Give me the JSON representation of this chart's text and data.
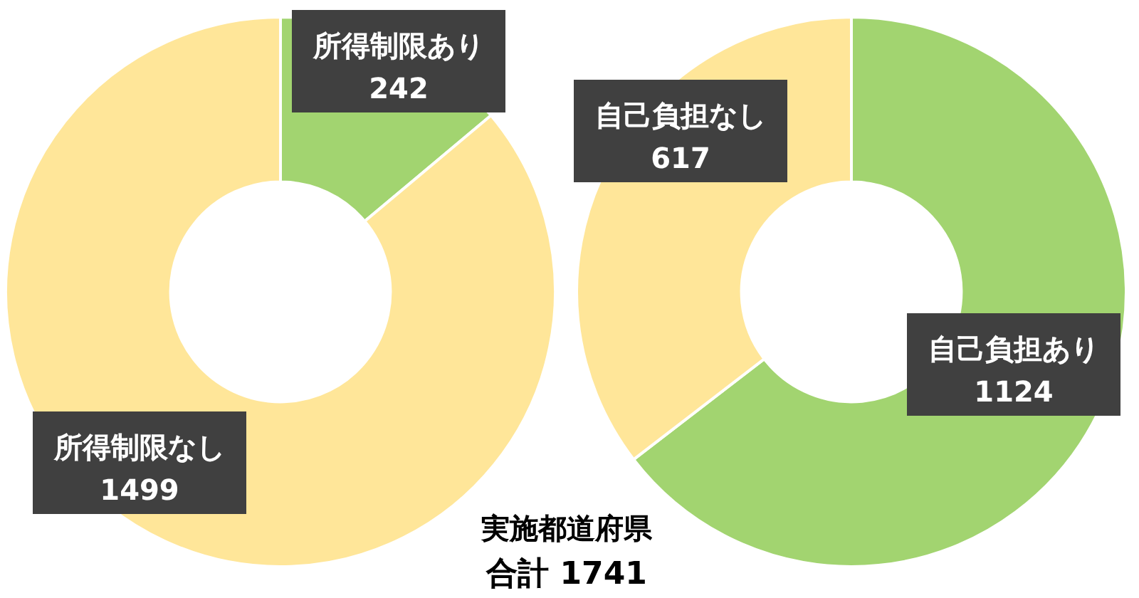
{
  "chart_data": [
    {
      "type": "donut",
      "categories": [
        "所得制限あり",
        "所得制限なし"
      ],
      "values": [
        242,
        1499
      ],
      "colors": [
        "#a2d470",
        "#ffe699"
      ],
      "data_labels": true,
      "annotations": [
        "実施都道府県",
        "合計 1741"
      ]
    },
    {
      "type": "donut",
      "categories": [
        "自己負担あり",
        "自己負担なし"
      ],
      "values": [
        1124,
        617
      ],
      "colors": [
        "#a2d470",
        "#ffe699"
      ],
      "data_labels": true
    }
  ]
}
